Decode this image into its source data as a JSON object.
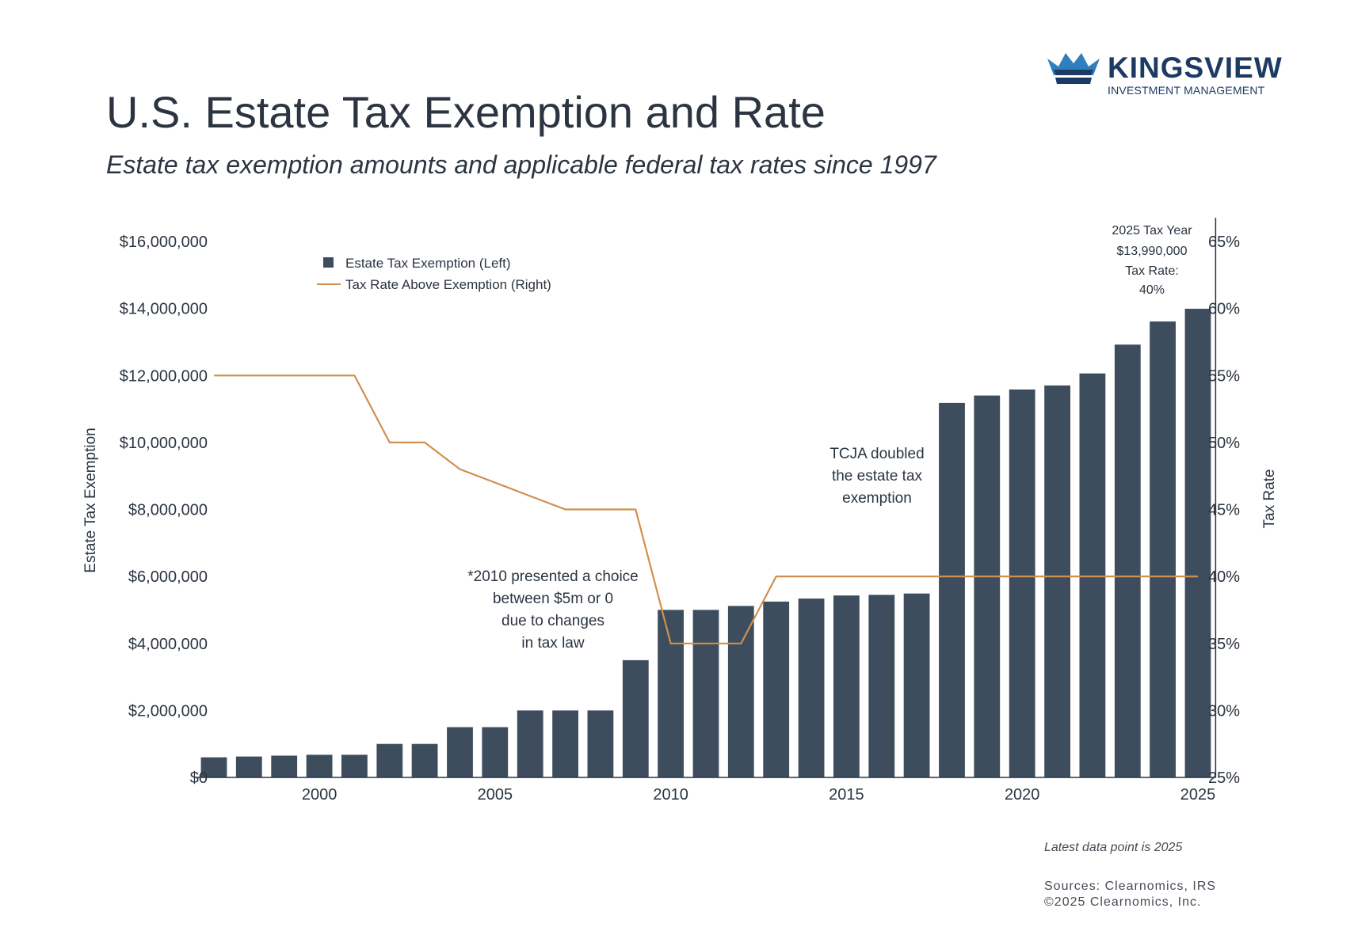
{
  "logo": {
    "name": "KINGSVIEW",
    "tagline": "INVESTMENT MANAGEMENT",
    "colors": [
      "#1d3a63",
      "#2f7fc0"
    ]
  },
  "header": {
    "title": "U.S. Estate Tax Exemption and Rate",
    "subtitle": "Estate tax exemption amounts and applicable federal tax rates since 1997"
  },
  "footer": {
    "latest": "Latest data point is 2025",
    "sources": "Sources: Clearnomics, IRS",
    "copyright": "©2025 Clearnomics, Inc."
  },
  "chart_data": {
    "type": "bar",
    "x": [
      1997,
      1998,
      1999,
      2000,
      2001,
      2002,
      2003,
      2004,
      2005,
      2006,
      2007,
      2008,
      2009,
      2010,
      2011,
      2012,
      2013,
      2014,
      2015,
      2016,
      2017,
      2018,
      2019,
      2020,
      2021,
      2022,
      2023,
      2024,
      2025
    ],
    "series": [
      {
        "name": "Estate Tax Exemption (Left)",
        "type": "bar",
        "axis": "left",
        "color": "#3d4d5d",
        "values": [
          600000,
          625000,
          650000,
          675000,
          675000,
          1000000,
          1000000,
          1500000,
          1500000,
          2000000,
          2000000,
          2000000,
          3500000,
          5000000,
          5000000,
          5120000,
          5250000,
          5340000,
          5430000,
          5450000,
          5490000,
          11180000,
          11400000,
          11580000,
          11700000,
          12060000,
          12920000,
          13610000,
          13990000
        ]
      },
      {
        "name": "Tax Rate Above Exemption (Right)",
        "type": "line",
        "axis": "right",
        "color": "#d18f4d",
        "values": [
          55,
          55,
          55,
          55,
          55,
          50,
          50,
          48,
          47,
          46,
          45,
          45,
          45,
          35,
          35,
          35,
          40,
          40,
          40,
          40,
          40,
          40,
          40,
          40,
          40,
          40,
          40,
          40,
          40
        ]
      }
    ],
    "x_ticks": [
      2000,
      2005,
      2010,
      2015,
      2020,
      2025
    ],
    "y_left": {
      "label": "Estate Tax Exemption",
      "min": 0,
      "max": 16000000,
      "ticks": [
        "$0",
        "$2,000,000",
        "$4,000,000",
        "$6,000,000",
        "$8,000,000",
        "$10,000,000",
        "$12,000,000",
        "$14,000,000",
        "$16,000,000"
      ]
    },
    "y_right": {
      "label": "Tax Rate",
      "min": 25,
      "max": 65,
      "ticks": [
        "25%",
        "30%",
        "35%",
        "40%",
        "45%",
        "50%",
        "55%",
        "60%",
        "65%"
      ]
    },
    "legend": {
      "position": "top-left"
    },
    "grid": false,
    "annotations": [
      {
        "id": "2025",
        "lines": [
          "2025 Tax Year",
          "$13,990,000",
          "Tax Rate:",
          "40%"
        ]
      },
      {
        "id": "tcja",
        "lines": [
          "TCJA doubled",
          "the estate tax",
          "exemption"
        ]
      },
      {
        "id": "2010",
        "lines": [
          "*2010 presented a choice",
          "between $5m or 0",
          "due to changes",
          "in tax law"
        ]
      }
    ]
  }
}
